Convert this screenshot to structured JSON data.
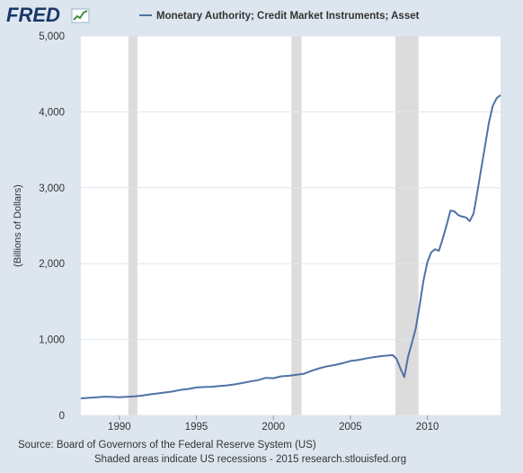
{
  "logo": {
    "text": "FRED",
    "icon": "fred-chart-logo-icon"
  },
  "colors": {
    "background": "#dde6ef",
    "plot": "#ffffff",
    "line": "#4f72a6",
    "recession": "#dcdcdc",
    "grid": "#dde6ef",
    "axis_text": "#333333"
  },
  "chart_data": {
    "type": "line",
    "title": "",
    "xlabel": "",
    "ylabel": "(Billions of Dollars)",
    "xlim": [
      1987.5,
      2014.75
    ],
    "ylim": [
      0,
      5000
    ],
    "x_ticks": [
      1990,
      1995,
      2000,
      2005,
      2010
    ],
    "y_ticks": [
      0,
      1000,
      2000,
      3000,
      4000,
      5000
    ],
    "y_tick_labels": [
      "0",
      "1,000",
      "2,000",
      "3,000",
      "4,000",
      "5,000"
    ],
    "grid": true,
    "legend_placement": "top",
    "recessions": [
      {
        "start": 1990.58,
        "end": 1991.17
      },
      {
        "start": 2001.17,
        "end": 2001.83
      },
      {
        "start": 2007.92,
        "end": 2009.42
      }
    ],
    "series": [
      {
        "name": "Monetary Authority; Credit Market Instruments; Asset",
        "x": [
          1987.5,
          1988.0,
          1988.5,
          1989.0,
          1989.5,
          1990.0,
          1990.5,
          1991.0,
          1991.5,
          1992.0,
          1992.5,
          1993.0,
          1993.5,
          1994.0,
          1994.5,
          1995.0,
          1995.5,
          1996.0,
          1996.5,
          1997.0,
          1997.5,
          1998.0,
          1998.5,
          1999.0,
          1999.5,
          2000.0,
          2000.5,
          2001.0,
          2001.5,
          2002.0,
          2002.5,
          2003.0,
          2003.5,
          2004.0,
          2004.5,
          2005.0,
          2005.5,
          2006.0,
          2006.5,
          2007.0,
          2007.5,
          2007.75,
          2008.0,
          2008.25,
          2008.5,
          2008.75,
          2009.0,
          2009.25,
          2009.5,
          2009.75,
          2010.0,
          2010.25,
          2010.5,
          2010.75,
          2011.0,
          2011.25,
          2011.5,
          2011.75,
          2012.0,
          2012.25,
          2012.5,
          2012.75,
          2013.0,
          2013.25,
          2013.5,
          2013.75,
          2014.0,
          2014.25,
          2014.5,
          2014.75
        ],
        "y": [
          225,
          232,
          238,
          248,
          244,
          240,
          246,
          252,
          262,
          278,
          290,
          303,
          318,
          338,
          350,
          368,
          375,
          378,
          388,
          396,
          410,
          428,
          448,
          465,
          495,
          490,
          515,
          522,
          535,
          550,
          590,
          622,
          648,
          665,
          688,
          718,
          730,
          750,
          768,
          782,
          790,
          795,
          745,
          620,
          505,
          780,
          960,
          1150,
          1450,
          1780,
          2020,
          2150,
          2190,
          2170,
          2330,
          2510,
          2700,
          2690,
          2640,
          2620,
          2610,
          2560,
          2660,
          2950,
          3260,
          3560,
          3860,
          4080,
          4180,
          4220
        ]
      }
    ]
  },
  "footer": {
    "source": "Source: Board of Governors of the Federal Reserve System (US)",
    "note": "Shaded areas indicate US recessions - 2015 research.stlouisfed.org"
  }
}
